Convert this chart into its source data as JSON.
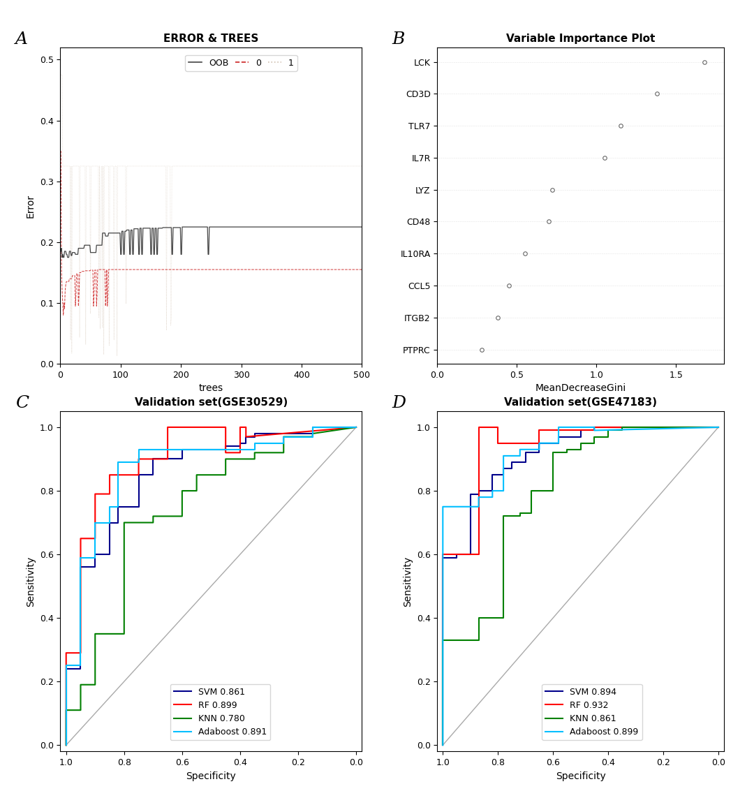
{
  "panel_labels": [
    "A",
    "B",
    "C",
    "D"
  ],
  "panel_label_fontsize": 18,
  "rf_title": "ERROR & TREES",
  "rf_xlabel": "trees",
  "rf_ylabel": "Error",
  "rf_ylim": [
    0.0,
    0.52
  ],
  "rf_xlim": [
    0,
    500
  ],
  "rf_xticks": [
    0,
    100,
    200,
    300,
    400,
    500
  ],
  "rf_yticks": [
    0.0,
    0.1,
    0.2,
    0.3,
    0.4,
    0.5
  ],
  "rf_oob_level": 0.225,
  "rf_class0_level": 0.155,
  "rf_class1_level": 0.325,
  "rf_oob_color": "#444444",
  "rf_class0_color": "#cc2222",
  "rf_class1_color": "#d0c0b0",
  "vip_title": "Variable Importance Plot",
  "vip_xlabel": "MeanDecreaseGini",
  "vip_genes": [
    "PTPRC",
    "ITGB2",
    "CCL5",
    "IL10RA",
    "CD48",
    "LYZ",
    "IL7R",
    "TLR7",
    "CD3D",
    "LCK"
  ],
  "vip_values": [
    0.28,
    0.38,
    0.45,
    0.55,
    0.7,
    0.72,
    1.05,
    1.15,
    1.38,
    1.68
  ],
  "vip_xlim": [
    0.0,
    1.8
  ],
  "vip_xticks": [
    0.0,
    0.5,
    1.0,
    1.5
  ],
  "roc_c_title": "Validation set(GSE30529)",
  "roc_c_xlabel": "Specificity",
  "roc_c_ylabel": "Sensitivity",
  "roc_c_svm_auc": "0.861",
  "roc_c_rf_auc": "0.899",
  "roc_c_knn_auc": "0.780",
  "roc_c_ada_auc": "0.891",
  "roc_c_svm_spec": [
    1.0,
    1.0,
    0.95,
    0.95,
    0.9,
    0.9,
    0.85,
    0.85,
    0.82,
    0.82,
    0.75,
    0.75,
    0.7,
    0.7,
    0.6,
    0.6,
    0.45,
    0.45,
    0.4,
    0.4,
    0.38,
    0.38,
    0.35,
    0.35,
    0.15,
    0.15,
    0.0
  ],
  "roc_c_svm_sens": [
    0.0,
    0.24,
    0.24,
    0.56,
    0.56,
    0.6,
    0.6,
    0.7,
    0.7,
    0.75,
    0.75,
    0.85,
    0.85,
    0.9,
    0.9,
    0.93,
    0.93,
    0.94,
    0.94,
    0.95,
    0.95,
    0.97,
    0.97,
    0.98,
    0.98,
    1.0,
    1.0
  ],
  "roc_c_rf_spec": [
    1.0,
    1.0,
    0.95,
    0.95,
    0.9,
    0.9,
    0.85,
    0.85,
    0.75,
    0.75,
    0.65,
    0.65,
    0.45,
    0.45,
    0.4,
    0.4,
    0.38,
    0.38,
    0.0
  ],
  "roc_c_rf_sens": [
    0.0,
    0.29,
    0.29,
    0.65,
    0.65,
    0.79,
    0.79,
    0.85,
    0.85,
    0.9,
    0.9,
    1.0,
    1.0,
    0.92,
    0.92,
    1.0,
    1.0,
    0.97,
    1.0
  ],
  "roc_c_knn_spec": [
    1.0,
    1.0,
    0.95,
    0.95,
    0.9,
    0.9,
    0.8,
    0.8,
    0.7,
    0.7,
    0.6,
    0.6,
    0.55,
    0.55,
    0.45,
    0.45,
    0.35,
    0.35,
    0.25,
    0.25,
    0.15,
    0.15,
    0.0
  ],
  "roc_c_knn_sens": [
    0.0,
    0.11,
    0.11,
    0.19,
    0.19,
    0.35,
    0.35,
    0.7,
    0.7,
    0.72,
    0.72,
    0.8,
    0.8,
    0.85,
    0.85,
    0.9,
    0.9,
    0.92,
    0.92,
    0.97,
    0.97,
    0.98,
    1.0
  ],
  "roc_c_ada_spec": [
    1.0,
    1.0,
    0.95,
    0.95,
    0.9,
    0.9,
    0.85,
    0.85,
    0.82,
    0.82,
    0.75,
    0.75,
    0.35,
    0.35,
    0.25,
    0.25,
    0.15,
    0.15,
    0.0
  ],
  "roc_c_ada_sens": [
    0.0,
    0.25,
    0.25,
    0.59,
    0.59,
    0.7,
    0.7,
    0.75,
    0.75,
    0.89,
    0.89,
    0.93,
    0.93,
    0.95,
    0.95,
    0.97,
    0.97,
    1.0,
    1.0
  ],
  "roc_d_title": "Validation set(GSE47183)",
  "roc_d_xlabel": "Specificity",
  "roc_d_ylabel": "Sensitivity",
  "roc_d_svm_auc": "0.894",
  "roc_d_rf_auc": "0.932",
  "roc_d_knn_auc": "0.861",
  "roc_d_ada_auc": "0.899",
  "roc_d_svm_spec": [
    1.0,
    1.0,
    0.95,
    0.95,
    0.9,
    0.9,
    0.87,
    0.87,
    0.82,
    0.82,
    0.78,
    0.78,
    0.75,
    0.75,
    0.7,
    0.7,
    0.65,
    0.65,
    0.58,
    0.58,
    0.5,
    0.5,
    0.45,
    0.45,
    0.0
  ],
  "roc_d_svm_sens": [
    0.0,
    0.59,
    0.59,
    0.6,
    0.6,
    0.79,
    0.79,
    0.8,
    0.8,
    0.85,
    0.85,
    0.87,
    0.87,
    0.89,
    0.89,
    0.92,
    0.92,
    0.95,
    0.95,
    0.97,
    0.97,
    0.99,
    0.99,
    1.0,
    1.0
  ],
  "roc_d_rf_spec": [
    1.0,
    1.0,
    0.87,
    0.87,
    0.8,
    0.8,
    0.65,
    0.65,
    0.45,
    0.45,
    0.0
  ],
  "roc_d_rf_sens": [
    0.0,
    0.6,
    0.6,
    1.0,
    1.0,
    0.95,
    0.95,
    0.99,
    0.99,
    1.0,
    1.0
  ],
  "roc_d_knn_spec": [
    1.0,
    1.0,
    0.87,
    0.87,
    0.78,
    0.78,
    0.72,
    0.72,
    0.68,
    0.68,
    0.6,
    0.6,
    0.55,
    0.55,
    0.5,
    0.5,
    0.45,
    0.45,
    0.4,
    0.4,
    0.35,
    0.35,
    0.0
  ],
  "roc_d_knn_sens": [
    0.0,
    0.33,
    0.33,
    0.4,
    0.4,
    0.72,
    0.72,
    0.73,
    0.73,
    0.8,
    0.8,
    0.92,
    0.92,
    0.93,
    0.93,
    0.95,
    0.95,
    0.97,
    0.97,
    0.99,
    0.99,
    1.0,
    1.0
  ],
  "roc_d_ada_spec": [
    1.0,
    1.0,
    0.87,
    0.87,
    0.82,
    0.82,
    0.78,
    0.78,
    0.72,
    0.72,
    0.65,
    0.65,
    0.58,
    0.58,
    0.45,
    0.45,
    0.0
  ],
  "roc_d_ada_sens": [
    0.0,
    0.75,
    0.75,
    0.78,
    0.78,
    0.8,
    0.8,
    0.91,
    0.91,
    0.93,
    0.93,
    0.95,
    0.95,
    1.0,
    1.0,
    0.99,
    1.0
  ],
  "svm_color": "#00008B",
  "rf_color_roc": "#FF0000",
  "knn_color": "#008000",
  "ada_color": "#00BFFF",
  "diagonal_color": "#aaaaaa",
  "background_color": "#ffffff",
  "tick_label_fontsize": 9,
  "axis_label_fontsize": 10,
  "title_fontsize": 11,
  "legend_fontsize": 9
}
